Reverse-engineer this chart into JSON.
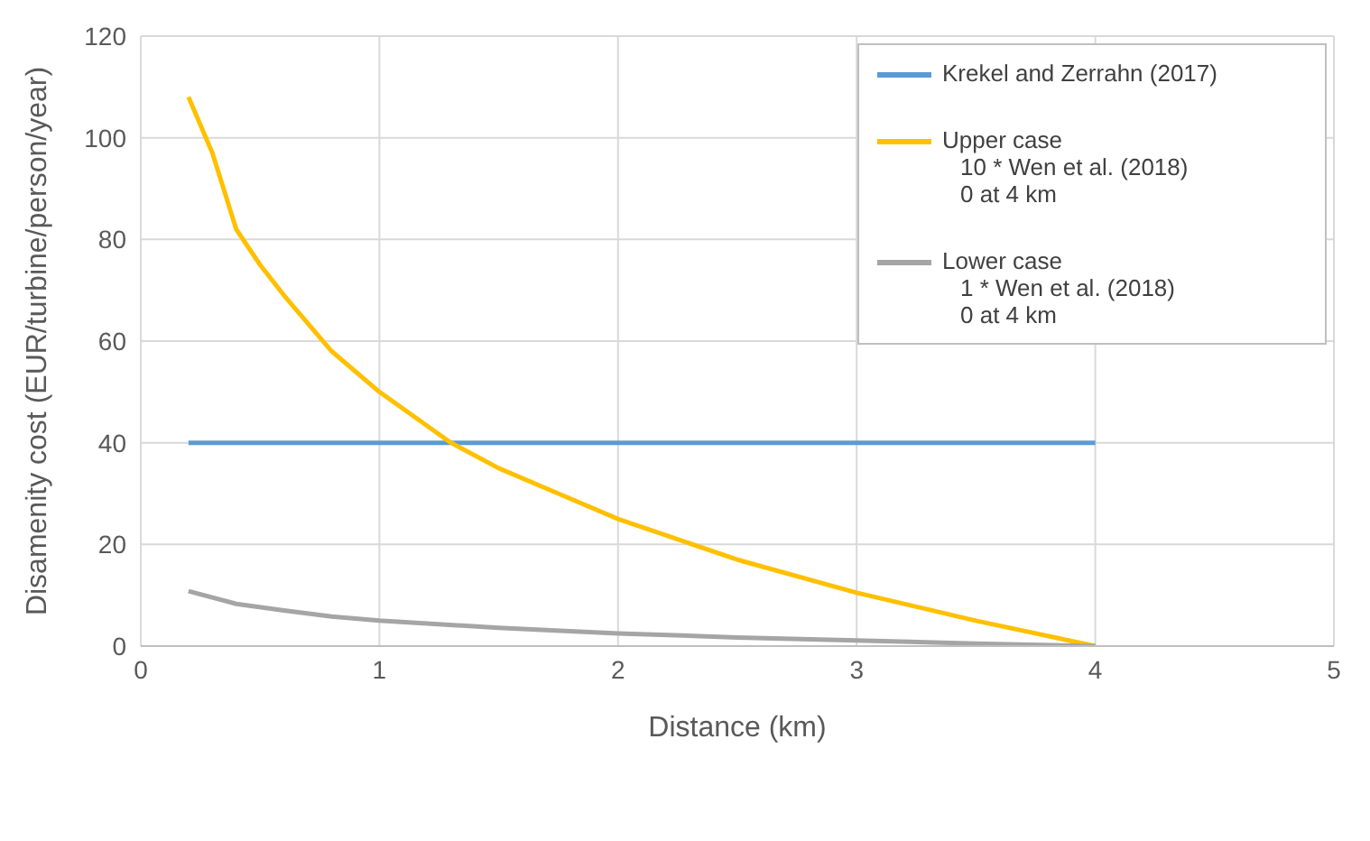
{
  "chart_data": {
    "type": "line",
    "xlabel": "Distance (km)",
    "ylabel": "Disamenity cost (EUR/turbine/person/year)",
    "xlim": [
      0,
      5
    ],
    "xticks": [
      0,
      1,
      2,
      3,
      4,
      5
    ],
    "ylim": [
      0,
      120
    ],
    "yticks": [
      0,
      20,
      40,
      60,
      80,
      100,
      120
    ],
    "grid": true,
    "legend": "top right",
    "marker": "none",
    "line_style": "solid",
    "series": [
      {
        "name": "Krekel and Zerrahn (2017)",
        "color": "#5b9bd5",
        "x": [
          0.2,
          4
        ],
        "values": [
          40,
          40
        ]
      },
      {
        "name": "Upper case\n10 * Wen et al. (2018)\n0 at 4 km",
        "color": "#ffc000",
        "x": [
          0.2,
          0.3,
          0.4,
          0.5,
          0.6,
          0.8,
          1,
          1.3,
          1.5,
          1.75,
          2,
          2.5,
          3,
          3.5,
          4
        ],
        "values": [
          108,
          97,
          82,
          75,
          69,
          58,
          50,
          40,
          35,
          30,
          25,
          17,
          10.5,
          5,
          0
        ]
      },
      {
        "name": "Lower case\n1 * Wen et al. (2018)\n0 at 4 km",
        "color": "#a5a5a5",
        "x": [
          0.2,
          0.4,
          0.6,
          0.8,
          1,
          1.5,
          2,
          2.5,
          3,
          3.5,
          4
        ],
        "values": [
          10.8,
          8.3,
          7,
          5.8,
          5,
          3.6,
          2.5,
          1.7,
          1.1,
          0.5,
          0
        ]
      }
    ]
  }
}
